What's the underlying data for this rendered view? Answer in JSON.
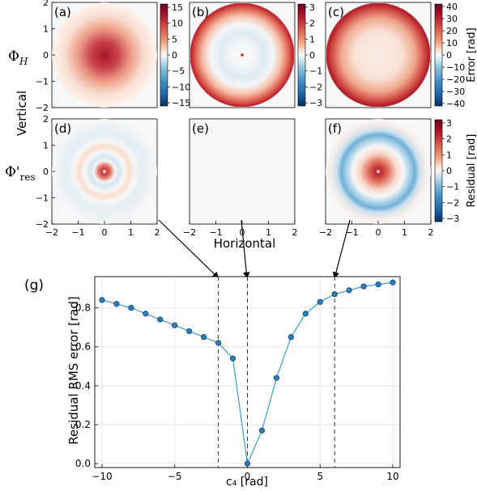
{
  "colors": {
    "red": "#b2182b",
    "blue": "#2166ac",
    "marker": "#2a7fbf",
    "line": "#3a9ad9"
  },
  "figure": {
    "row_labels": {
      "top": "Φ",
      "top_sub": "H",
      "bottom": "Φ'",
      "bottom_sub": "res"
    },
    "vertical_label": "Vertical",
    "horizontal_label": "Horizontal",
    "panel_ticks": [
      "−2",
      "−1",
      "0",
      "1",
      "2"
    ],
    "panels": [
      {
        "label": "(a)",
        "pattern": "smooth-peak"
      },
      {
        "label": "(b)",
        "pattern": "ring-with-center-spike"
      },
      {
        "label": "(c)",
        "pattern": "edge-ring"
      },
      {
        "label": "(d)",
        "pattern": "damped-rings"
      },
      {
        "label": "(e)",
        "pattern": "flat"
      },
      {
        "label": "(f)",
        "pattern": "outer-negative-ring"
      }
    ],
    "colorbars": [
      {
        "for": "(a)",
        "ticks": [
          "15",
          "10",
          "5",
          "0",
          "−5",
          "−10",
          "−15"
        ],
        "label": ""
      },
      {
        "for": "(b)",
        "ticks": [
          "3",
          "2",
          "1",
          "0",
          "−1",
          "−2",
          "−3"
        ],
        "label": ""
      },
      {
        "for": "(c)",
        "ticks": [
          "40",
          "30",
          "20",
          "10",
          "0",
          "−10",
          "−20",
          "−30",
          "−40"
        ],
        "label": "Error [rad]"
      },
      {
        "for": "(f)",
        "ticks": [
          "3",
          "2",
          "1",
          "0",
          "−1",
          "−2",
          "−3"
        ],
        "label": "Residual [rad]"
      }
    ]
  },
  "chart_data": {
    "type": "line",
    "panel_label": "(g)",
    "xlabel": "c₄ [rad]",
    "ylabel": "Residual RMS error [rad]",
    "xlim": [
      -10.5,
      10.5
    ],
    "ylim": [
      -0.02,
      0.96
    ],
    "x_ticks": [
      "−10",
      "−5",
      "0",
      "5",
      "10"
    ],
    "y_ticks": [
      "0.0",
      "0.2",
      "0.4",
      "0.6",
      "0.8"
    ],
    "grid": true,
    "vlines": [
      -2,
      0,
      6
    ],
    "series": [
      {
        "x": [
          -10,
          -9,
          -8,
          -7,
          -6,
          -5,
          -4,
          -3,
          -2,
          -1,
          0,
          1,
          2,
          3,
          4,
          5,
          6,
          7,
          8,
          9,
          10
        ],
        "y": [
          0.84,
          0.82,
          0.8,
          0.77,
          0.74,
          0.71,
          0.68,
          0.65,
          0.62,
          0.54,
          0.0,
          0.17,
          0.44,
          0.65,
          0.77,
          0.83,
          0.87,
          0.89,
          0.91,
          0.92,
          0.93
        ]
      }
    ]
  }
}
